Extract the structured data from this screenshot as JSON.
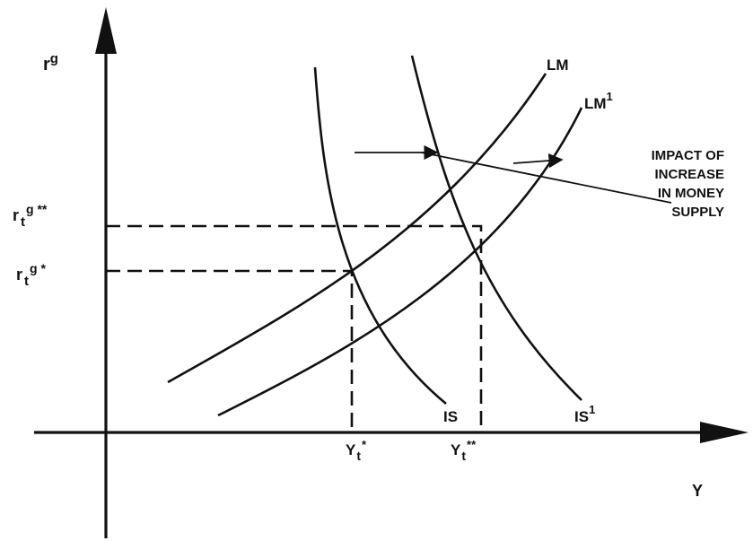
{
  "axes": {
    "y_label": "r",
    "y_label_sup": "g",
    "x_label": "Y"
  },
  "curves": {
    "lm": {
      "label": "LM"
    },
    "lm1": {
      "label": "LM",
      "sup": "1"
    },
    "is": {
      "label": "IS"
    },
    "is1": {
      "label": "IS",
      "sup": "1"
    }
  },
  "levels": {
    "r_star": {
      "base": "r",
      "sub": "t",
      "sup": "g *"
    },
    "r_star2": {
      "base": "r",
      "sub": "t",
      "sup": "g **"
    },
    "y_star": {
      "base": "Y",
      "sub": "t",
      "sup": "*"
    },
    "y_star2": {
      "base": "Y",
      "sub": "t",
      "sup": "**"
    }
  },
  "annotation": {
    "lines": [
      "IMPACT OF",
      "INCREASE",
      "IN MONEY",
      "SUPPLY"
    ]
  }
}
